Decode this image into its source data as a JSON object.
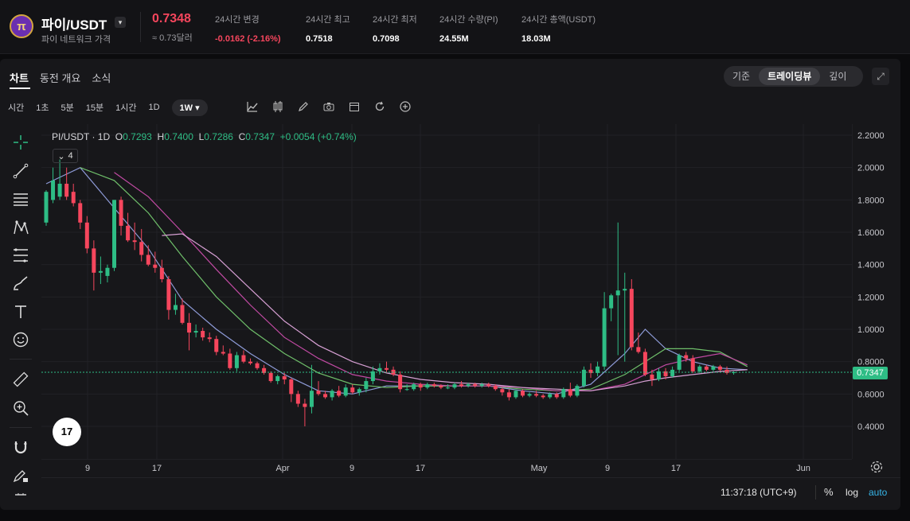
{
  "header": {
    "coin_logo_text": "π",
    "pair": "파이/USDT",
    "pair_caret": "▾",
    "subtitle": "파이 네트워크 가격",
    "price": "0.7348",
    "price_fiat": "≈ 0.73달러",
    "stats": [
      {
        "label": "24시간 변경",
        "value": "-0.0162 (-2.16%)",
        "negative": true
      },
      {
        "label": "24시간 최고",
        "value": "0.7518"
      },
      {
        "label": "24시간 최저",
        "value": "0.7098"
      },
      {
        "label": "24시간 수량(PI)",
        "value": "24.55M"
      },
      {
        "label": "24시간 총액(USDT)",
        "value": "18.03M"
      }
    ]
  },
  "tabs": [
    "차트",
    "동전 개요",
    "소식"
  ],
  "view_modes": [
    "기준",
    "트레이딩뷰",
    "깊이"
  ],
  "active_view_mode": "트레이딩뷰",
  "timeframes": [
    "시간",
    "1초",
    "5분",
    "15분",
    "1시간",
    "1D",
    "1W ▾"
  ],
  "active_timeframe": "1W ▾",
  "legend": {
    "symbol": "PI/USDT · 1D",
    "o_label": "O",
    "o": "0.7293",
    "h_label": "H",
    "h": "0.7400",
    "l_label": "L",
    "l": "0.7286",
    "c_label": "C",
    "c": "0.7347",
    "change": "+0.0054 (+0.74%)"
  },
  "indicator_count": "4",
  "tv_logo": "17",
  "last_price_tag": "0.7347",
  "price_axis_labels": [
    "2.2000",
    "2.0000",
    "1.8000",
    "1.6000",
    "1.4000",
    "1.2000",
    "1.0000",
    "0.8000",
    "0.6000",
    "0.4000"
  ],
  "time_axis_labels": [
    "9",
    "17",
    "Apr",
    "9",
    "17",
    "May",
    "9",
    "17",
    "Jun"
  ],
  "clock": "11:37:18 (UTC+9)",
  "bottom": {
    "percent": "%",
    "log": "log",
    "auto": "auto"
  },
  "colors": {
    "up": "#2ebd85",
    "down": "#f6465d",
    "ma1": "#8e9bd8",
    "ma2": "#6fbf6a",
    "ma3": "#c14aa3",
    "ma4": "#d7a0d4"
  },
  "chart_data": {
    "type": "candlestick",
    "title": "",
    "ylim": [
      0.3,
      2.25
    ],
    "candles": [
      {
        "o": 1.66,
        "h": 1.86,
        "l": 1.64,
        "c": 1.85
      },
      {
        "o": 1.8,
        "h": 2.0,
        "l": 1.78,
        "c": 1.92
      },
      {
        "o": 1.82,
        "h": 2.05,
        "l": 1.8,
        "c": 1.9
      },
      {
        "o": 1.9,
        "h": 2.0,
        "l": 1.8,
        "c": 1.82
      },
      {
        "o": 1.85,
        "h": 1.9,
        "l": 1.76,
        "c": 1.78
      },
      {
        "o": 1.78,
        "h": 1.8,
        "l": 1.62,
        "c": 1.66
      },
      {
        "o": 1.66,
        "h": 1.7,
        "l": 1.47,
        "c": 1.5
      },
      {
        "o": 1.5,
        "h": 1.55,
        "l": 1.24,
        "c": 1.35
      },
      {
        "o": 1.35,
        "h": 1.45,
        "l": 1.28,
        "c": 1.36
      },
      {
        "o": 1.33,
        "h": 1.4,
        "l": 1.29,
        "c": 1.38
      },
      {
        "o": 1.38,
        "h": 1.8,
        "l": 1.36,
        "c": 1.8
      },
      {
        "o": 1.8,
        "h": 1.82,
        "l": 1.58,
        "c": 1.64
      },
      {
        "o": 1.64,
        "h": 1.72,
        "l": 1.54,
        "c": 1.55
      },
      {
        "o": 1.55,
        "h": 1.66,
        "l": 1.49,
        "c": 1.54
      },
      {
        "o": 1.54,
        "h": 1.62,
        "l": 1.42,
        "c": 1.46
      },
      {
        "o": 1.46,
        "h": 1.52,
        "l": 1.39,
        "c": 1.4
      },
      {
        "o": 1.4,
        "h": 1.48,
        "l": 1.35,
        "c": 1.38
      },
      {
        "o": 1.38,
        "h": 1.43,
        "l": 1.29,
        "c": 1.31
      },
      {
        "o": 1.31,
        "h": 1.33,
        "l": 1.06,
        "c": 1.12
      },
      {
        "o": 1.12,
        "h": 1.22,
        "l": 1.09,
        "c": 1.15
      },
      {
        "o": 1.15,
        "h": 1.19,
        "l": 1.03,
        "c": 1.04
      },
      {
        "o": 1.04,
        "h": 1.1,
        "l": 0.87,
        "c": 0.98
      },
      {
        "o": 0.98,
        "h": 1.03,
        "l": 0.95,
        "c": 0.99
      },
      {
        "o": 0.99,
        "h": 1.01,
        "l": 0.93,
        "c": 0.95
      },
      {
        "o": 0.95,
        "h": 0.98,
        "l": 0.92,
        "c": 0.94
      },
      {
        "o": 0.94,
        "h": 0.96,
        "l": 0.84,
        "c": 0.86
      },
      {
        "o": 0.86,
        "h": 0.9,
        "l": 0.84,
        "c": 0.85
      },
      {
        "o": 0.85,
        "h": 0.88,
        "l": 0.75,
        "c": 0.76
      },
      {
        "o": 0.76,
        "h": 0.86,
        "l": 0.74,
        "c": 0.84
      },
      {
        "o": 0.84,
        "h": 0.87,
        "l": 0.79,
        "c": 0.8
      },
      {
        "o": 0.8,
        "h": 0.82,
        "l": 0.78,
        "c": 0.79
      },
      {
        "o": 0.79,
        "h": 0.8,
        "l": 0.75,
        "c": 0.76
      },
      {
        "o": 0.76,
        "h": 0.78,
        "l": 0.72,
        "c": 0.73
      },
      {
        "o": 0.73,
        "h": 0.74,
        "l": 0.67,
        "c": 0.68
      },
      {
        "o": 0.68,
        "h": 0.72,
        "l": 0.66,
        "c": 0.71
      },
      {
        "o": 0.71,
        "h": 0.73,
        "l": 0.66,
        "c": 0.69
      },
      {
        "o": 0.69,
        "h": 0.7,
        "l": 0.55,
        "c": 0.6
      },
      {
        "o": 0.6,
        "h": 0.62,
        "l": 0.52,
        "c": 0.54
      },
      {
        "o": 0.54,
        "h": 0.57,
        "l": 0.4,
        "c": 0.52
      },
      {
        "o": 0.52,
        "h": 0.78,
        "l": 0.48,
        "c": 0.62
      },
      {
        "o": 0.62,
        "h": 0.68,
        "l": 0.59,
        "c": 0.6
      },
      {
        "o": 0.6,
        "h": 0.62,
        "l": 0.57,
        "c": 0.58
      },
      {
        "o": 0.58,
        "h": 0.63,
        "l": 0.56,
        "c": 0.62
      },
      {
        "o": 0.62,
        "h": 0.65,
        "l": 0.58,
        "c": 0.59
      },
      {
        "o": 0.59,
        "h": 0.66,
        "l": 0.58,
        "c": 0.64
      },
      {
        "o": 0.64,
        "h": 0.66,
        "l": 0.6,
        "c": 0.61
      },
      {
        "o": 0.61,
        "h": 0.64,
        "l": 0.59,
        "c": 0.63
      },
      {
        "o": 0.63,
        "h": 0.7,
        "l": 0.61,
        "c": 0.68
      },
      {
        "o": 0.68,
        "h": 0.77,
        "l": 0.66,
        "c": 0.74
      },
      {
        "o": 0.74,
        "h": 0.79,
        "l": 0.72,
        "c": 0.76
      },
      {
        "o": 0.76,
        "h": 0.8,
        "l": 0.73,
        "c": 0.75
      },
      {
        "o": 0.75,
        "h": 0.77,
        "l": 0.71,
        "c": 0.72
      },
      {
        "o": 0.72,
        "h": 0.74,
        "l": 0.61,
        "c": 0.63
      },
      {
        "o": 0.63,
        "h": 0.66,
        "l": 0.62,
        "c": 0.63
      },
      {
        "o": 0.63,
        "h": 0.67,
        "l": 0.62,
        "c": 0.66
      },
      {
        "o": 0.66,
        "h": 0.67,
        "l": 0.62,
        "c": 0.64
      },
      {
        "o": 0.64,
        "h": 0.67,
        "l": 0.63,
        "c": 0.66
      },
      {
        "o": 0.66,
        "h": 0.67,
        "l": 0.64,
        "c": 0.65
      },
      {
        "o": 0.65,
        "h": 0.66,
        "l": 0.63,
        "c": 0.64
      },
      {
        "o": 0.64,
        "h": 0.66,
        "l": 0.63,
        "c": 0.64
      },
      {
        "o": 0.64,
        "h": 0.67,
        "l": 0.63,
        "c": 0.66
      },
      {
        "o": 0.66,
        "h": 0.68,
        "l": 0.64,
        "c": 0.65
      },
      {
        "o": 0.65,
        "h": 0.67,
        "l": 0.64,
        "c": 0.66
      },
      {
        "o": 0.66,
        "h": 0.67,
        "l": 0.64,
        "c": 0.65
      },
      {
        "o": 0.65,
        "h": 0.67,
        "l": 0.64,
        "c": 0.66
      },
      {
        "o": 0.66,
        "h": 0.67,
        "l": 0.64,
        "c": 0.65
      },
      {
        "o": 0.65,
        "h": 0.66,
        "l": 0.62,
        "c": 0.63
      },
      {
        "o": 0.63,
        "h": 0.64,
        "l": 0.59,
        "c": 0.61
      },
      {
        "o": 0.61,
        "h": 0.63,
        "l": 0.56,
        "c": 0.58
      },
      {
        "o": 0.58,
        "h": 0.63,
        "l": 0.57,
        "c": 0.62
      },
      {
        "o": 0.62,
        "h": 0.63,
        "l": 0.58,
        "c": 0.59
      },
      {
        "o": 0.59,
        "h": 0.61,
        "l": 0.58,
        "c": 0.6
      },
      {
        "o": 0.6,
        "h": 0.62,
        "l": 0.58,
        "c": 0.59
      },
      {
        "o": 0.59,
        "h": 0.6,
        "l": 0.57,
        "c": 0.58
      },
      {
        "o": 0.58,
        "h": 0.61,
        "l": 0.57,
        "c": 0.6
      },
      {
        "o": 0.6,
        "h": 0.61,
        "l": 0.57,
        "c": 0.58
      },
      {
        "o": 0.58,
        "h": 0.64,
        "l": 0.57,
        "c": 0.63
      },
      {
        "o": 0.63,
        "h": 0.67,
        "l": 0.58,
        "c": 0.59
      },
      {
        "o": 0.59,
        "h": 0.66,
        "l": 0.58,
        "c": 0.65
      },
      {
        "o": 0.65,
        "h": 0.77,
        "l": 0.64,
        "c": 0.75
      },
      {
        "o": 0.75,
        "h": 0.79,
        "l": 0.7,
        "c": 0.73
      },
      {
        "o": 0.73,
        "h": 0.8,
        "l": 0.71,
        "c": 0.77
      },
      {
        "o": 0.77,
        "h": 1.23,
        "l": 0.75,
        "c": 1.13
      },
      {
        "o": 1.13,
        "h": 1.22,
        "l": 1.05,
        "c": 1.21
      },
      {
        "o": 1.21,
        "h": 1.66,
        "l": 0.84,
        "c": 1.24
      },
      {
        "o": 1.24,
        "h": 1.35,
        "l": 0.8,
        "c": 1.25
      },
      {
        "o": 1.25,
        "h": 1.31,
        "l": 0.87,
        "c": 0.89
      },
      {
        "o": 0.89,
        "h": 0.98,
        "l": 0.85,
        "c": 0.86
      },
      {
        "o": 0.86,
        "h": 0.88,
        "l": 0.71,
        "c": 0.72
      },
      {
        "o": 0.72,
        "h": 0.75,
        "l": 0.65,
        "c": 0.69
      },
      {
        "o": 0.69,
        "h": 0.76,
        "l": 0.68,
        "c": 0.74
      },
      {
        "o": 0.74,
        "h": 0.76,
        "l": 0.69,
        "c": 0.71
      },
      {
        "o": 0.71,
        "h": 0.77,
        "l": 0.7,
        "c": 0.75
      },
      {
        "o": 0.75,
        "h": 0.85,
        "l": 0.74,
        "c": 0.84
      },
      {
        "o": 0.84,
        "h": 0.86,
        "l": 0.8,
        "c": 0.82
      },
      {
        "o": 0.82,
        "h": 0.84,
        "l": 0.73,
        "c": 0.74
      },
      {
        "o": 0.74,
        "h": 0.78,
        "l": 0.73,
        "c": 0.77
      },
      {
        "o": 0.77,
        "h": 0.78,
        "l": 0.74,
        "c": 0.75
      },
      {
        "o": 0.75,
        "h": 0.78,
        "l": 0.74,
        "c": 0.77
      },
      {
        "o": 0.77,
        "h": 0.78,
        "l": 0.74,
        "c": 0.75
      },
      {
        "o": 0.75,
        "h": 0.77,
        "l": 0.72,
        "c": 0.73
      },
      {
        "o": 0.73,
        "h": 0.74,
        "l": 0.72,
        "c": 0.7347
      }
    ],
    "ma_series": [
      {
        "values": [
          [
            0,
            1.9
          ],
          [
            5,
            2.0
          ],
          [
            10,
            1.75
          ],
          [
            15,
            1.5
          ],
          [
            20,
            1.18
          ],
          [
            25,
            1.0
          ],
          [
            30,
            0.85
          ],
          [
            35,
            0.72
          ],
          [
            40,
            0.62
          ],
          [
            45,
            0.6
          ],
          [
            50,
            0.65
          ],
          [
            55,
            0.65
          ],
          [
            60,
            0.65
          ],
          [
            65,
            0.65
          ],
          [
            70,
            0.62
          ],
          [
            75,
            0.6
          ],
          [
            80,
            0.66
          ],
          [
            85,
            0.85
          ],
          [
            88,
            1.0
          ],
          [
            91,
            0.88
          ],
          [
            95,
            0.8
          ],
          [
            99,
            0.76
          ],
          [
            103,
            0.75
          ]
        ]
      },
      {
        "values": [
          [
            5,
            2.0
          ],
          [
            10,
            1.92
          ],
          [
            15,
            1.72
          ],
          [
            20,
            1.45
          ],
          [
            25,
            1.2
          ],
          [
            30,
            1.0
          ],
          [
            35,
            0.85
          ],
          [
            40,
            0.73
          ],
          [
            45,
            0.66
          ],
          [
            50,
            0.64
          ],
          [
            55,
            0.65
          ],
          [
            60,
            0.65
          ],
          [
            65,
            0.65
          ],
          [
            70,
            0.63
          ],
          [
            75,
            0.62
          ],
          [
            80,
            0.63
          ],
          [
            85,
            0.72
          ],
          [
            88,
            0.8
          ],
          [
            91,
            0.88
          ],
          [
            95,
            0.88
          ],
          [
            99,
            0.86
          ],
          [
            103,
            0.77
          ]
        ]
      },
      {
        "values": [
          [
            10,
            1.97
          ],
          [
            15,
            1.82
          ],
          [
            20,
            1.6
          ],
          [
            25,
            1.37
          ],
          [
            30,
            1.15
          ],
          [
            35,
            0.95
          ],
          [
            40,
            0.82
          ],
          [
            45,
            0.72
          ],
          [
            50,
            0.68
          ],
          [
            55,
            0.66
          ],
          [
            60,
            0.65
          ],
          [
            65,
            0.65
          ],
          [
            70,
            0.64
          ],
          [
            75,
            0.62
          ],
          [
            80,
            0.62
          ],
          [
            85,
            0.66
          ],
          [
            88,
            0.72
          ],
          [
            91,
            0.78
          ],
          [
            95,
            0.82
          ],
          [
            99,
            0.85
          ],
          [
            103,
            0.78
          ]
        ]
      },
      {
        "values": [
          [
            17,
            1.58
          ],
          [
            20,
            1.59
          ],
          [
            25,
            1.45
          ],
          [
            30,
            1.25
          ],
          [
            35,
            1.05
          ],
          [
            40,
            0.9
          ],
          [
            45,
            0.8
          ],
          [
            50,
            0.73
          ],
          [
            55,
            0.69
          ],
          [
            60,
            0.67
          ],
          [
            65,
            0.66
          ],
          [
            70,
            0.64
          ],
          [
            75,
            0.63
          ],
          [
            80,
            0.62
          ],
          [
            85,
            0.65
          ],
          [
            88,
            0.68
          ],
          [
            91,
            0.7
          ],
          [
            95,
            0.72
          ],
          [
            99,
            0.74
          ],
          [
            103,
            0.75
          ]
        ]
      }
    ]
  }
}
